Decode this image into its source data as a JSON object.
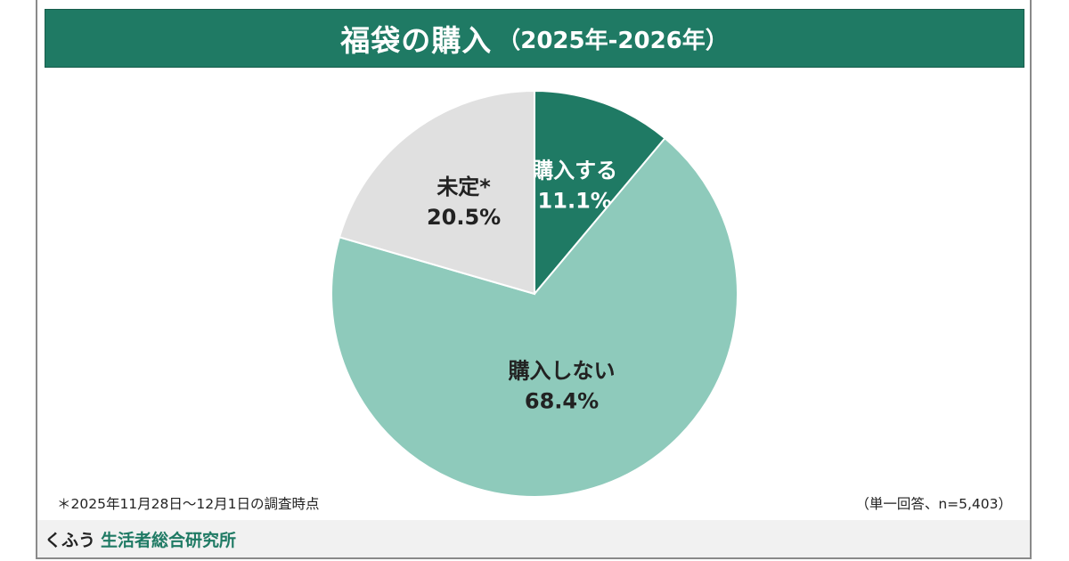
{
  "title": {
    "main": "福袋の購入",
    "sub": "（2025年-2026年）"
  },
  "chart_data": {
    "type": "pie",
    "title": "福袋の購入（2025年-2026年）",
    "start": "12 o'clock",
    "direction": "clockwise",
    "slices": [
      {
        "label": "購入する",
        "value": 11.1,
        "value_label": "11.1%",
        "color": "#1f7a64",
        "text_color": "#ffffff"
      },
      {
        "label": "購入しない",
        "value": 68.4,
        "value_label": "68.4%",
        "color": "#8ecabb",
        "text_color": "#222222"
      },
      {
        "label": "未定*",
        "value": 20.5,
        "value_label": "20.5%",
        "color": "#e0e0e0",
        "text_color": "#222222"
      }
    ]
  },
  "footnote": "＊2025年11月28日～12月1日の調査時点",
  "sample_note": "（単一回答、n=5,403）",
  "footer": {
    "brand": "くふう",
    "org": "生活者総合研究所"
  }
}
